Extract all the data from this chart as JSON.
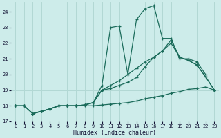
{
  "xlabel": "Humidex (Indice chaleur)",
  "bg_color": "#cdecea",
  "grid_color": "#b2d8d4",
  "line_color": "#1a6b5a",
  "xlim": [
    -0.5,
    23.5
  ],
  "ylim": [
    17.0,
    24.6
  ],
  "yticks": [
    17,
    18,
    19,
    20,
    21,
    22,
    23,
    24
  ],
  "xticks": [
    0,
    1,
    2,
    3,
    4,
    5,
    6,
    7,
    8,
    9,
    10,
    11,
    12,
    13,
    14,
    15,
    16,
    17,
    18,
    19,
    20,
    21,
    22,
    23
  ],
  "line1_x": [
    0,
    1,
    2,
    3,
    4,
    5,
    6,
    7,
    8,
    9,
    10,
    11,
    12,
    13,
    14,
    15,
    16,
    17,
    18,
    19,
    20,
    21,
    22,
    23
  ],
  "line1_y": [
    18.0,
    18.0,
    17.5,
    17.65,
    17.8,
    18.0,
    18.0,
    18.0,
    18.0,
    18.0,
    18.05,
    18.1,
    18.15,
    18.2,
    18.3,
    18.45,
    18.55,
    18.65,
    18.8,
    18.9,
    19.05,
    19.1,
    19.2,
    19.0
  ],
  "line2_x": [
    0,
    1,
    2,
    3,
    4,
    5,
    6,
    7,
    8,
    9,
    10,
    11,
    12,
    13,
    14,
    15,
    16,
    17,
    18,
    19,
    20,
    21,
    22
  ],
  "line2_y": [
    18.0,
    18.0,
    17.5,
    17.65,
    17.8,
    18.0,
    18.0,
    18.0,
    18.05,
    18.2,
    19.3,
    23.0,
    23.1,
    20.0,
    23.5,
    24.2,
    24.4,
    22.3,
    22.3,
    21.0,
    21.0,
    20.8,
    20.0
  ],
  "line3_x": [
    0,
    1,
    2,
    3,
    4,
    5,
    6,
    7,
    8,
    9,
    10,
    11,
    12,
    13,
    14,
    15,
    16,
    17,
    18,
    19,
    20,
    21,
    22,
    23
  ],
  "line3_y": [
    18.0,
    18.0,
    17.5,
    17.65,
    17.8,
    18.0,
    18.0,
    18.0,
    18.05,
    18.2,
    19.0,
    19.3,
    19.6,
    20.0,
    20.4,
    20.8,
    21.1,
    21.5,
    22.0,
    21.1,
    20.9,
    20.6,
    19.85,
    19.0
  ],
  "line4_x": [
    2,
    3,
    4,
    5,
    6,
    7,
    8,
    9,
    10,
    11,
    12,
    13,
    14,
    15,
    16,
    17,
    18,
    19,
    20,
    21,
    22,
    23
  ],
  "line4_y": [
    17.5,
    17.65,
    17.8,
    18.0,
    18.0,
    18.0,
    18.05,
    18.2,
    19.0,
    19.1,
    19.3,
    19.5,
    19.8,
    20.5,
    21.1,
    21.5,
    22.2,
    21.1,
    20.9,
    20.6,
    19.85,
    19.0
  ]
}
